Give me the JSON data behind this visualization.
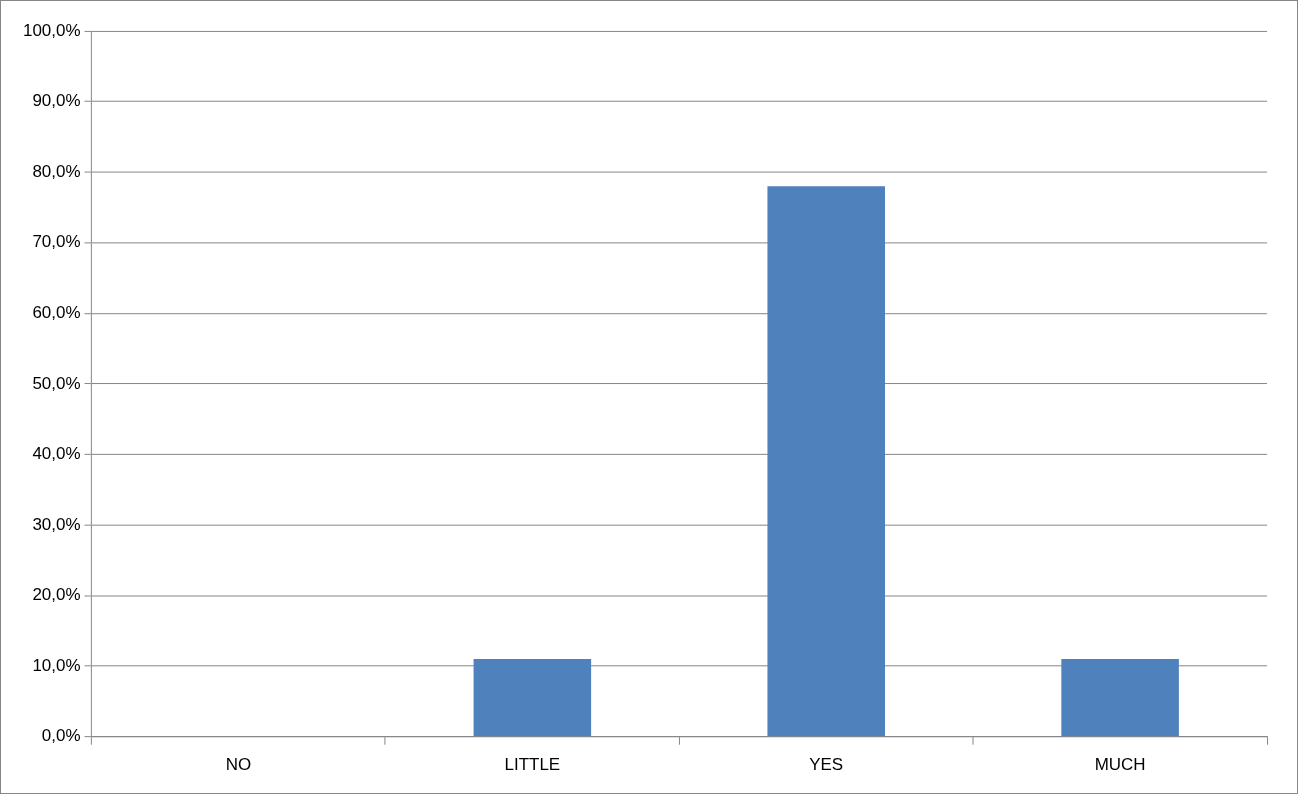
{
  "chart_data": {
    "type": "bar",
    "categories": [
      "NO",
      "LITTLE",
      "YES",
      "MUCH"
    ],
    "values": [
      0,
      11,
      78,
      11
    ],
    "color": "#4f81bd",
    "ylim": [
      0,
      100
    ],
    "yticks": [
      {
        "value": 0,
        "label": "0,0%"
      },
      {
        "value": 10,
        "label": "10,0%"
      },
      {
        "value": 20,
        "label": "20,0%"
      },
      {
        "value": 30,
        "label": "30,0%"
      },
      {
        "value": 40,
        "label": "40,0%"
      },
      {
        "value": 50,
        "label": "50,0%"
      },
      {
        "value": 60,
        "label": "60,0%"
      },
      {
        "value": 70,
        "label": "70,0%"
      },
      {
        "value": 80,
        "label": "80,0%"
      },
      {
        "value": 90,
        "label": "90,0%"
      },
      {
        "value": 100,
        "label": "100,0%"
      }
    ],
    "grid": "y",
    "legend": false
  }
}
